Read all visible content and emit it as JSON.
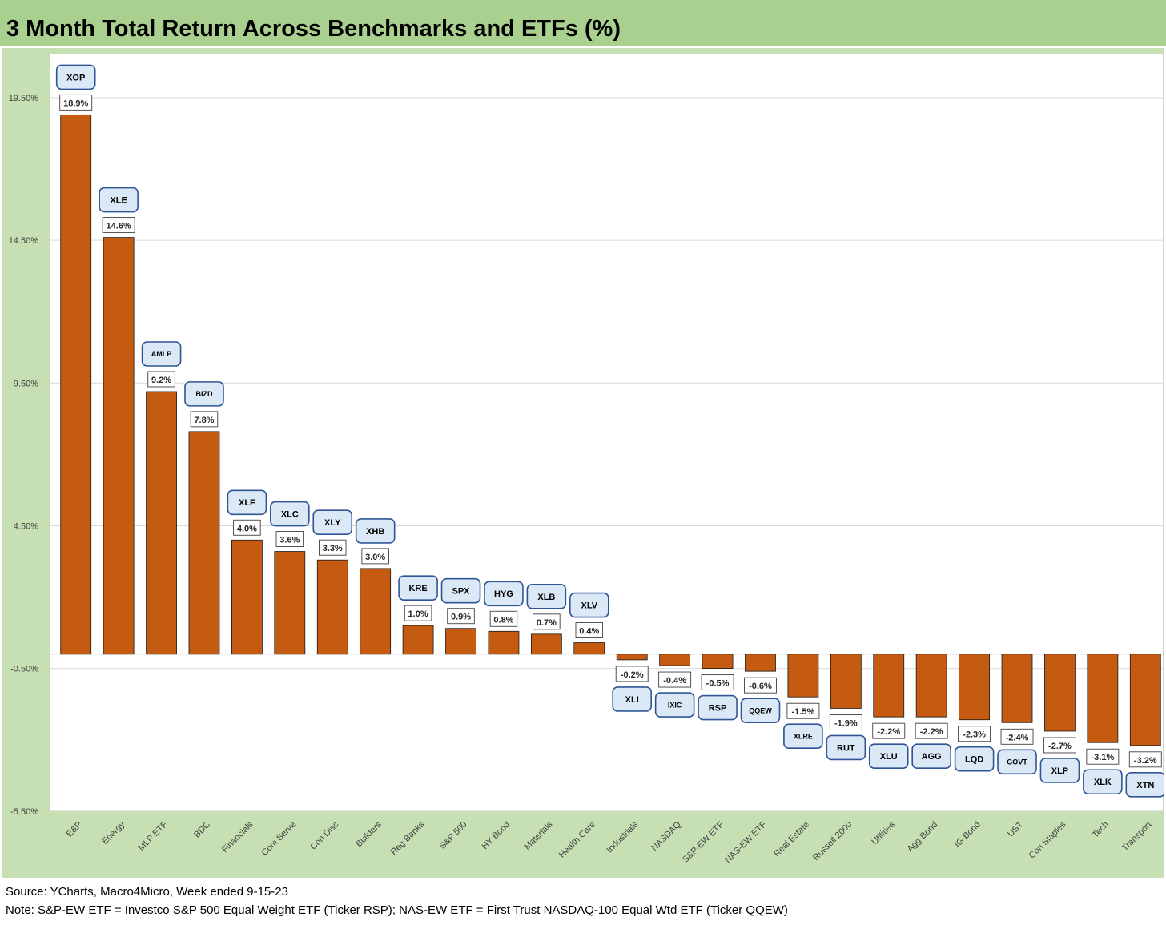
{
  "title": "3 Month Total Return Across Benchmarks and ETFs (%)",
  "footer": {
    "source": "Source: YCharts, Macro4Micro, Week ended 9-15-23",
    "note": "Note: S&P-EW ETF = Investco S&P 500 Equal Weight ETF (Ticker RSP); NAS-EW ETF = First Trust NASDAQ-100 Equal Wtd ETF (Ticker QQEW)"
  },
  "colors": {
    "bar": "#c55a11",
    "plot_background": "#ffffff",
    "frame": "#c6e0b4",
    "title_band": "#a9d08e",
    "ticker_box_fill": "#dbe9f7",
    "ticker_box_border": "#2f5597"
  },
  "chart_data": {
    "type": "bar",
    "ylim": [
      -5.5,
      21
    ],
    "yticks": [
      19.5,
      14.5,
      9.5,
      4.5,
      -0.5,
      -5.5
    ],
    "ytick_labels": [
      "19.50%",
      "14.50%",
      "9.50%",
      "4.50%",
      "-0.50%",
      "-5.50%"
    ],
    "grid": true,
    "categories": [
      "E&P",
      "Energy",
      "MLP ETF",
      "BDC",
      "Financials",
      "Com Serve",
      "Con Disc",
      "Builders",
      "Reg Banks",
      "S&P 500",
      "HY Bond",
      "Materials",
      "Health Care",
      "Industrials",
      "NASDAQ",
      "S&P-EW ETF",
      "NAS-EW ETF",
      "Real Estate",
      "Russell 2000",
      "Utilities",
      "Agg Bond",
      "IG Bond",
      "UST",
      "Con Staples",
      "Tech",
      "Transport"
    ],
    "values": [
      18.9,
      14.6,
      9.2,
      7.8,
      4.0,
      3.6,
      3.3,
      3.0,
      1.0,
      0.9,
      0.8,
      0.7,
      0.4,
      -0.2,
      -0.4,
      -0.5,
      -0.6,
      -1.5,
      -1.9,
      -2.2,
      -2.2,
      -2.3,
      -2.4,
      -2.7,
      -3.1,
      -3.2
    ],
    "value_labels": [
      "18.9%",
      "14.6%",
      "9.2%",
      "7.8%",
      "4.0%",
      "3.6%",
      "3.3%",
      "3.0%",
      "1.0%",
      "0.9%",
      "0.8%",
      "0.7%",
      "0.4%",
      "-0.2%",
      "-0.4%",
      "-0.5%",
      "-0.6%",
      "-1.5%",
      "-1.9%",
      "-2.2%",
      "-2.2%",
      "-2.3%",
      "-2.4%",
      "-2.7%",
      "-3.1%",
      "-3.2%"
    ],
    "tickers": [
      "XOP",
      "XLE",
      "AMLP",
      "BIZD",
      "XLF",
      "XLC",
      "XLY",
      "XHB",
      "KRE",
      "SPX",
      "HYG",
      "XLB",
      "XLV",
      "XLI",
      "IXIC",
      "RSP",
      "QQEW",
      "XLRE",
      "RUT",
      "XLU",
      "AGG",
      "LQD",
      "GOVT",
      "XLP",
      "XLK",
      "XTN"
    ]
  }
}
